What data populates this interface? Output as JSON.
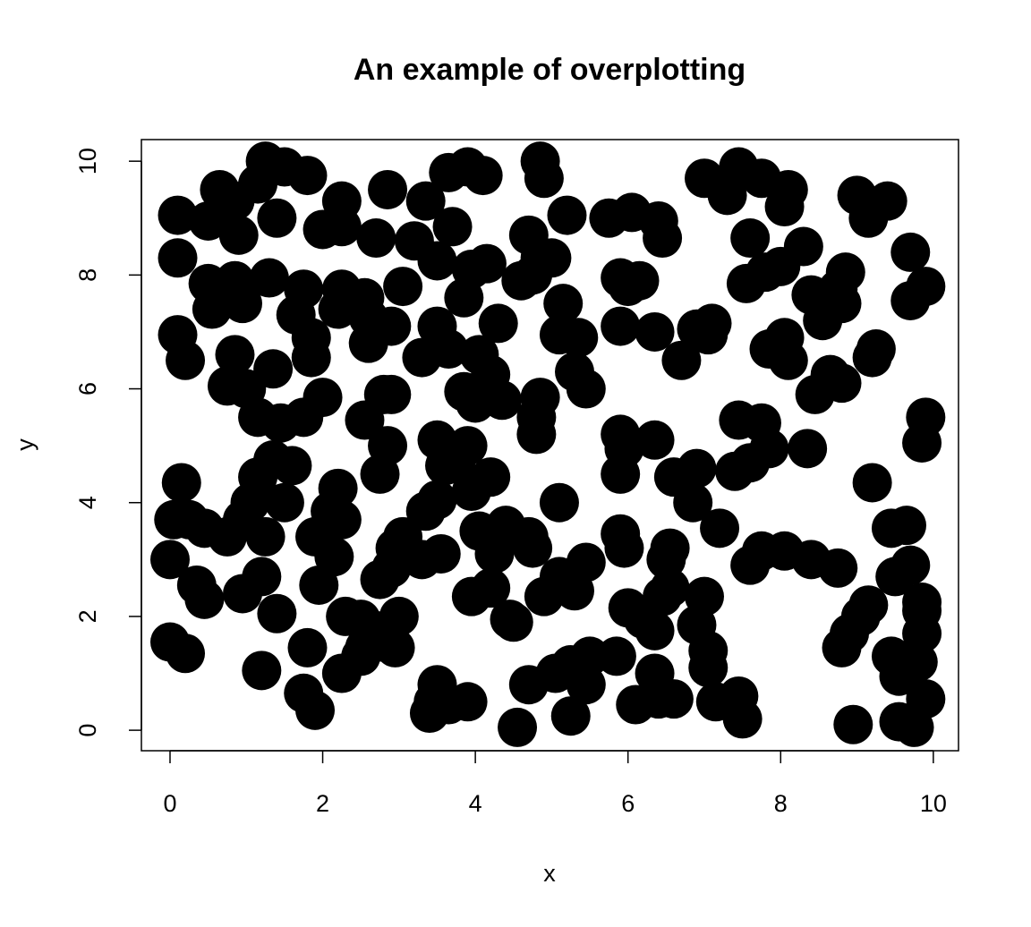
{
  "chart_data": {
    "type": "scatter",
    "title": "An example of overplotting",
    "x_label": "x",
    "y_label": "y",
    "color": "#000000",
    "x": [
      0.1,
      0.1,
      0.65,
      0.5,
      0.85,
      0.9,
      1.25,
      1.5,
      1.15,
      1.4,
      1.8,
      0.5,
      0.55,
      0.85,
      0.95,
      1.3,
      1.75,
      0.1,
      0.2,
      0.85,
      0.75,
      1.0,
      1.35,
      1.65,
      1.85,
      1.85,
      1.15,
      1.45,
      1.75,
      2.0,
      2.0,
      2.25,
      2.25,
      2.7,
      2.85,
      2.25,
      2.2,
      2.55,
      2.6,
      2.6,
      2.9,
      3.05,
      3.2,
      3.35,
      3.5,
      3.7,
      3.65,
      3.9,
      4.1,
      3.95,
      4.15,
      3.85,
      3.5,
      3.65,
      3.3,
      4.3,
      4.05,
      4.2,
      3.85,
      4.0,
      4.35,
      2.8,
      2.9,
      2.55,
      2.85,
      2.75,
      4.7,
      4.85,
      4.75,
      4.85,
      4.9,
      5.2,
      5.0,
      4.6,
      5.15,
      5.1,
      5.35,
      5.3,
      5.45,
      4.8,
      4.85,
      4.8,
      5.75,
      6.05,
      6.4,
      6.45,
      5.9,
      6.0,
      6.15,
      5.9,
      6.35,
      6.7,
      6.9,
      7.1,
      7.05,
      7.0,
      7.3,
      7.45,
      7.75,
      8.1,
      8.05,
      7.6,
      7.55,
      7.8,
      8.0,
      8.3,
      7.85,
      8.05,
      8.1,
      8.4,
      8.55,
      8.75,
      8.85,
      8.8,
      8.45,
      8.65,
      8.8,
      9.0,
      9.15,
      9.4,
      9.25,
      9.2,
      9.7,
      9.7,
      9.9,
      7.45,
      7.75,
      7.85,
      7.6,
      7.4,
      8.35,
      9.9,
      9.85,
      9.2,
      5.9,
      5.95,
      5.9,
      6.35,
      6.6,
      6.9,
      6.85,
      7.2,
      7.6,
      7.75,
      8.05,
      8.4,
      8.75,
      9.45,
      9.65,
      9.7,
      9.5,
      9.85,
      9.85,
      9.15,
      9.05,
      8.9,
      8.8,
      9.45,
      9.65,
      9.85,
      9.8,
      9.55,
      9.9,
      9.55,
      9.75,
      8.95,
      5.9,
      5.95,
      5.85,
      6.0,
      6.2,
      6.45,
      6.55,
      6.55,
      6.5,
      6.9,
      7.0,
      7.05,
      7.05,
      7.15,
      7.45,
      7.5,
      6.35,
      6.35,
      6.4,
      6.6,
      6.1,
      5.5,
      5.45,
      5.25,
      5.25,
      5.05,
      4.7,
      4.55,
      5.1,
      5.45,
      5.3,
      4.9,
      5.1,
      4.45,
      4.5,
      3.95,
      4.2,
      4.4,
      4.35,
      4.25,
      4.7,
      4.75,
      4.05,
      4.2,
      3.95,
      3.9,
      3.75,
      3.5,
      3.6,
      3.5,
      3.35,
      3.55,
      3.3,
      3.05,
      2.95,
      2.9,
      2.75,
      3.0,
      2.7,
      2.55,
      2.5,
      2.95,
      2.25,
      2.3,
      2.5,
      2.15,
      2.25,
      2.1,
      1.9,
      1.95,
      2.2,
      1.5,
      1.35,
      1.6,
      1.15,
      1.05,
      0.95,
      0.75,
      1.25,
      1.2,
      0.95,
      1.4,
      0.15,
      0.05,
      0.25,
      0.45,
      0.0,
      0.35,
      0.45,
      0.0,
      0.2,
      1.2,
      1.8,
      1.75,
      1.9,
      3.4,
      3.45,
      3.5,
      3.65,
      3.9,
      2.75
    ],
    "values": [
      9.05,
      8.3,
      9.5,
      8.95,
      9.3,
      8.7,
      10,
      9.9,
      9.6,
      9.0,
      9.75,
      7.85,
      7.4,
      7.9,
      7.5,
      7.95,
      7.75,
      6.95,
      6.5,
      6.6,
      6.05,
      6.0,
      6.35,
      7.3,
      6.9,
      6.55,
      5.5,
      5.4,
      5.5,
      5.85,
      8.8,
      9.3,
      8.85,
      8.65,
      9.5,
      7.75,
      7.4,
      7.6,
      7.25,
      6.8,
      7.1,
      7.8,
      8.6,
      9.3,
      8.25,
      8.85,
      9.8,
      9.9,
      9.75,
      8.1,
      8.2,
      7.6,
      7.1,
      6.7,
      6.55,
      7.15,
      6.6,
      6.25,
      5.95,
      5.75,
      5.8,
      5.9,
      5.9,
      5.45,
      5.0,
      4.5,
      8.7,
      8.3,
      8.0,
      10,
      9.7,
      9.05,
      8.3,
      7.9,
      7.5,
      6.95,
      6.9,
      6.3,
      6.0,
      5.5,
      5.85,
      5.2,
      9.0,
      9.1,
      8.95,
      8.65,
      7.95,
      7.8,
      7.9,
      7.1,
      7.0,
      6.5,
      7.05,
      7.15,
      6.95,
      9.7,
      9.4,
      9.9,
      9.7,
      9.5,
      9.2,
      8.65,
      7.85,
      8.05,
      8.15,
      8.5,
      6.7,
      6.9,
      6.5,
      7.65,
      7.2,
      7.75,
      8.05,
      7.5,
      5.9,
      6.25,
      6.1,
      9.4,
      9.0,
      9.3,
      6.7,
      6.55,
      8.4,
      7.55,
      7.8,
      5.45,
      5.4,
      4.95,
      4.7,
      4.55,
      4.95,
      5.5,
      5.05,
      4.35,
      5.2,
      4.95,
      4.5,
      5.1,
      4.45,
      4.6,
      4.0,
      3.55,
      2.9,
      3.15,
      3.15,
      3.0,
      2.85,
      3.55,
      3.6,
      2.9,
      2.7,
      2.25,
      2.1,
      2.2,
      2.0,
      1.7,
      1.45,
      1.3,
      1.2,
      1.7,
      1.2,
      0.95,
      0.55,
      0.15,
      0.05,
      0.1,
      3.45,
      3.2,
      1.3,
      2.15,
      1.95,
      2.35,
      2.5,
      3.2,
      3.0,
      1.85,
      2.35,
      1.4,
      1.1,
      0.5,
      0.6,
      0.2,
      1.75,
      1.0,
      0.55,
      0.55,
      0.45,
      1.3,
      0.8,
      1.15,
      0.25,
      1.0,
      0.8,
      0.05,
      4.0,
      2.95,
      2.45,
      2.35,
      2.7,
      1.95,
      1.9,
      2.35,
      2.5,
      3.6,
      3.4,
      3.1,
      3.4,
      3.2,
      3.5,
      4.45,
      4.2,
      5.0,
      4.75,
      5.1,
      4.65,
      4.05,
      3.85,
      3.1,
      3.0,
      3.4,
      3.2,
      2.85,
      2.65,
      2.0,
      1.75,
      1.45,
      1.3,
      1.45,
      1.0,
      2.0,
      1.95,
      3.05,
      3.7,
      3.85,
      3.4,
      2.55,
      4.25,
      4.0,
      4.75,
      4.65,
      4.45,
      4.0,
      3.7,
      3.4,
      3.4,
      2.7,
      2.4,
      2.05,
      4.35,
      3.7,
      3.7,
      3.55,
      3.0,
      2.55,
      2.3,
      1.55,
      1.35,
      1.05,
      1.45,
      0.65,
      0.35,
      0.3,
      0.5,
      0.8,
      0.45,
      0.5,
      1.55
    ],
    "xlim": [
      -0.375,
      10.33
    ],
    "ylim": [
      -0.36,
      10.38
    ],
    "xticks": [
      0,
      2,
      4,
      6,
      8,
      10
    ],
    "yticks": [
      0,
      2,
      4,
      6,
      8,
      10
    ],
    "grid": false
  }
}
